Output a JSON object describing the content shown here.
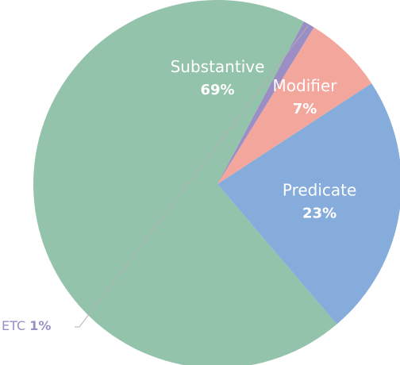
{
  "chart_data": {
    "type": "pie",
    "slices": [
      {
        "label": "Substantive",
        "value": 69,
        "value_label": "69%",
        "color": "#94c3ab",
        "label_placement": "inside"
      },
      {
        "label": "Predicate",
        "value": 23,
        "value_label": "23%",
        "color": "#86acdc",
        "label_placement": "inside"
      },
      {
        "label": "Modifier",
        "value": 7,
        "value_label": "7%",
        "color": "#f3a69b",
        "label_placement": "inside"
      },
      {
        "label": "ETC",
        "value": 1,
        "value_label": "1%",
        "color": "#9a8ec4",
        "label_placement": "outside"
      }
    ],
    "order": "counterclockwise",
    "title": "",
    "legend": "none"
  }
}
